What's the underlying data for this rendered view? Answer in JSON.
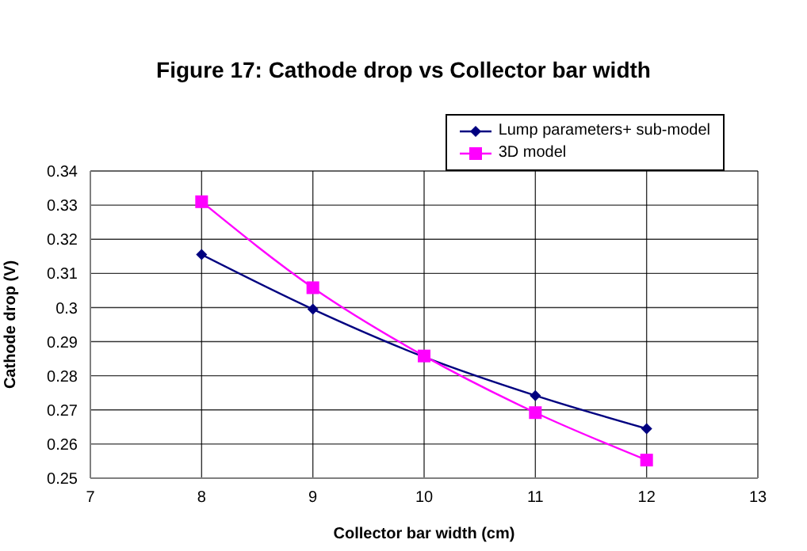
{
  "chart_data": {
    "type": "line",
    "title": "Figure 17: Cathode drop vs Collector bar width",
    "xlabel": "Collector bar width (cm)",
    "ylabel": "Cathode drop (V)",
    "x": [
      8,
      9,
      10,
      11,
      12
    ],
    "series": [
      {
        "name": "Lump parameters+ sub-model",
        "color": "#000080",
        "marker": "diamond",
        "values": [
          0.3155,
          0.2995,
          0.2855,
          0.2742,
          0.2645
        ]
      },
      {
        "name": "3D model",
        "color": "#ff00ff",
        "marker": "square",
        "values": [
          0.331,
          0.3058,
          0.2858,
          0.2692,
          0.2553
        ]
      }
    ],
    "xlim": [
      7,
      13
    ],
    "xticks": [
      7,
      8,
      9,
      10,
      11,
      12,
      13
    ],
    "ylim": [
      0.25,
      0.34
    ],
    "yticks": [
      0.25,
      0.26,
      0.27,
      0.28,
      0.29,
      0.3,
      0.31,
      0.32,
      0.33,
      0.34
    ],
    "grid": true,
    "legend": "top right",
    "line_style": "solid"
  }
}
